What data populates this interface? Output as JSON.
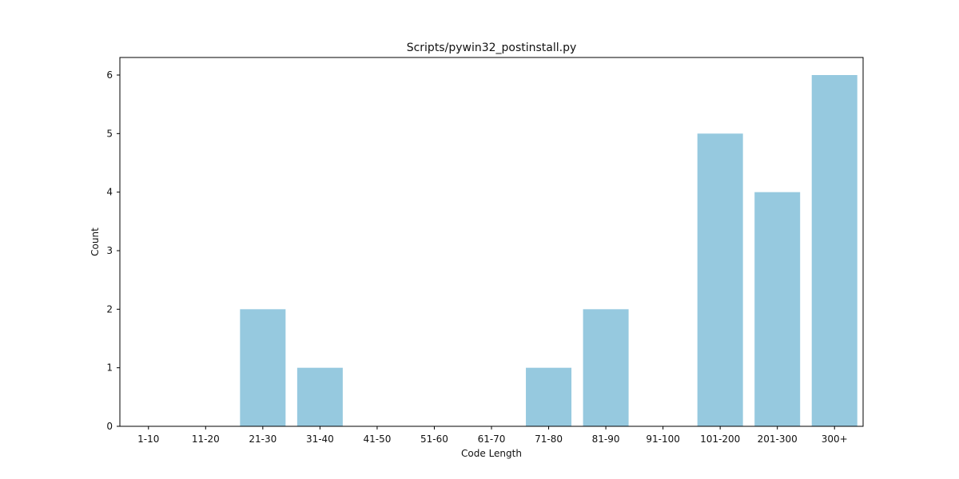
{
  "chart_data": {
    "type": "bar",
    "title": "Scripts/pywin32_postinstall.py",
    "xlabel": "Code Length",
    "ylabel": "Count",
    "categories": [
      "1-10",
      "11-20",
      "21-30",
      "31-40",
      "41-50",
      "51-60",
      "61-70",
      "71-80",
      "81-90",
      "91-100",
      "101-200",
      "201-300",
      "300+"
    ],
    "values": [
      0,
      0,
      2,
      1,
      0,
      0,
      0,
      1,
      2,
      0,
      5,
      4,
      6
    ],
    "ylim": [
      0,
      6.3
    ],
    "yticks": [
      0,
      1,
      2,
      3,
      4,
      5,
      6
    ],
    "bar_color": "#96c9df",
    "grid": false,
    "legend": "none"
  }
}
